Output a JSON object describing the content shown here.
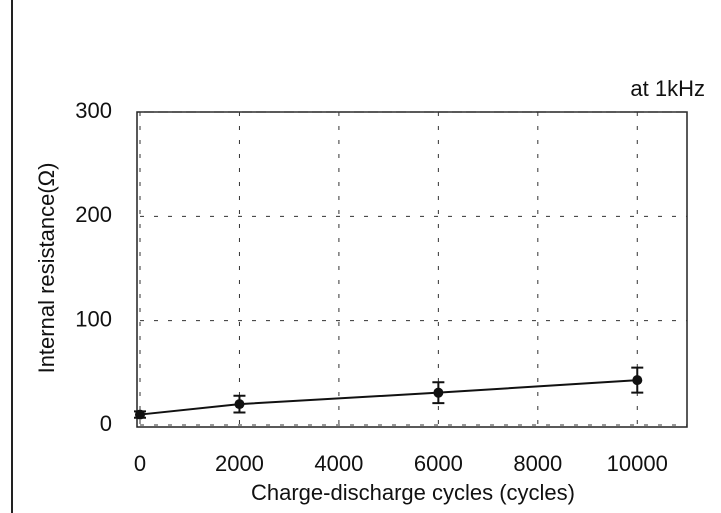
{
  "chart_data": {
    "type": "line",
    "annotation": "at 1kHz",
    "x_label": "Charge-discharge cycles (cycles)",
    "y_label": "Internal resistance(Ω)",
    "x": [
      0,
      2000,
      6000,
      10000
    ],
    "series": [
      {
        "color": "#111111",
        "values": [
          10,
          20,
          31,
          43
        ],
        "errors": [
          3,
          8,
          10,
          12
        ]
      }
    ],
    "xlim": [
      0,
      11000
    ],
    "ylim": [
      0,
      300
    ],
    "xticks": [
      0,
      2000,
      4000,
      6000,
      8000,
      10000
    ],
    "yticks": [
      0,
      100,
      200,
      300
    ],
    "grid": true
  }
}
